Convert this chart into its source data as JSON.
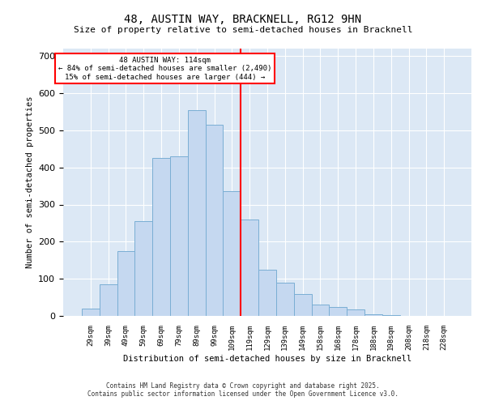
{
  "title": "48, AUSTIN WAY, BRACKNELL, RG12 9HN",
  "subtitle": "Size of property relative to semi-detached houses in Bracknell",
  "xlabel": "Distribution of semi-detached houses by size in Bracknell",
  "ylabel": "Number of semi-detached properties",
  "bar_labels": [
    "29sqm",
    "39sqm",
    "49sqm",
    "59sqm",
    "69sqm",
    "79sqm",
    "89sqm",
    "99sqm",
    "109sqm",
    "119sqm",
    "129sqm",
    "139sqm",
    "149sqm",
    "158sqm",
    "168sqm",
    "178sqm",
    "188sqm",
    "198sqm",
    "208sqm",
    "218sqm",
    "228sqm"
  ],
  "bar_values": [
    20,
    85,
    175,
    255,
    425,
    430,
    555,
    515,
    335,
    260,
    125,
    90,
    60,
    30,
    25,
    18,
    5,
    3,
    0,
    0,
    0
  ],
  "bar_color": "#c5d8f0",
  "bar_edge_color": "#7aaed4",
  "vline_color": "red",
  "annotation_line1": "48 AUSTIN WAY: 114sqm",
  "annotation_line2": "← 84% of semi-detached houses are smaller (2,490)",
  "annotation_line3": "15% of semi-detached houses are larger (444) →",
  "ylim": [
    0,
    720
  ],
  "yticks": [
    0,
    100,
    200,
    300,
    400,
    500,
    600,
    700
  ],
  "background_color": "#dce8f5",
  "footer_line1": "Contains HM Land Registry data © Crown copyright and database right 2025.",
  "footer_line2": "Contains public sector information licensed under the Open Government Licence v3.0."
}
